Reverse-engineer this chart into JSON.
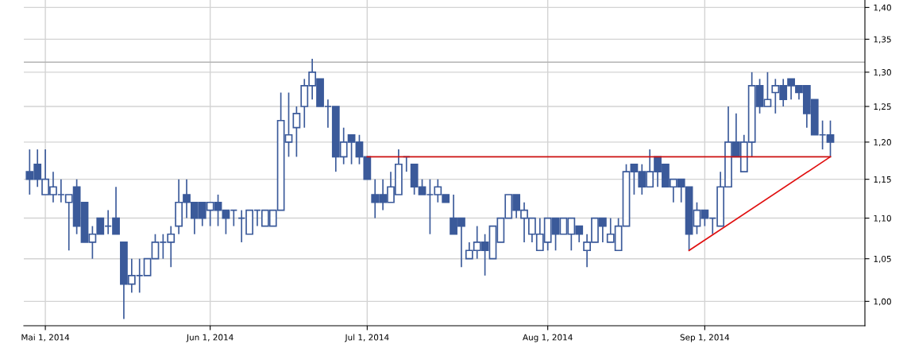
{
  "chart_data": {
    "type": "candlestick",
    "categories": [
      null,
      null,
      "Mai 1, 2014",
      null,
      null,
      null,
      null,
      null,
      null,
      null,
      null,
      null,
      null,
      null,
      null,
      null,
      null,
      null,
      null,
      null,
      null,
      null,
      null,
      "Jun 1, 2014",
      null,
      null,
      null,
      null,
      null,
      null,
      null,
      null,
      null,
      null,
      null,
      null,
      null,
      null,
      null,
      null,
      null,
      null,
      null,
      "Jul 1, 2014",
      null,
      null,
      null,
      null,
      null,
      null,
      null,
      null,
      null,
      null,
      null,
      null,
      null,
      null,
      null,
      null,
      null,
      null,
      null,
      null,
      null,
      null,
      "Aug 1, 2014",
      null,
      null,
      null,
      null,
      null,
      null,
      null,
      null,
      null,
      null,
      null,
      null,
      null,
      null,
      null,
      null,
      null,
      null,
      null,
      "Sep 1, 2014",
      null,
      null,
      null,
      null,
      null,
      null,
      null,
      null,
      null,
      null,
      null,
      null,
      null,
      null,
      null,
      null
    ],
    "series": [
      {
        "color": "#3b5a9a",
        "ohlc": [
          [
            1.16,
            1.19,
            1.13,
            1.15
          ],
          [
            1.17,
            1.19,
            1.14,
            1.15
          ],
          [
            1.13,
            1.19,
            1.13,
            1.15
          ],
          [
            1.13,
            1.16,
            1.12,
            1.14
          ],
          [
            1.13,
            1.15,
            1.12,
            1.13
          ],
          [
            1.12,
            1.13,
            1.06,
            1.13
          ],
          [
            1.14,
            1.15,
            1.08,
            1.09
          ],
          [
            1.12,
            1.12,
            1.07,
            1.07
          ],
          [
            1.07,
            1.09,
            1.05,
            1.08
          ],
          [
            1.1,
            1.1,
            1.08,
            1.08
          ],
          [
            1.09,
            1.11,
            1.08,
            1.09
          ],
          [
            1.1,
            1.14,
            1.08,
            1.08
          ],
          [
            1.07,
            1.07,
            0.98,
            1.02
          ],
          [
            1.02,
            1.05,
            1.01,
            1.03
          ],
          [
            1.03,
            1.05,
            1.01,
            1.03
          ],
          [
            1.03,
            1.05,
            1.03,
            1.05
          ],
          [
            1.05,
            1.08,
            1.05,
            1.07
          ],
          [
            1.07,
            1.08,
            1.05,
            1.07
          ],
          [
            1.07,
            1.09,
            1.04,
            1.08
          ],
          [
            1.09,
            1.15,
            1.08,
            1.12
          ],
          [
            1.13,
            1.15,
            1.1,
            1.12
          ],
          [
            1.12,
            1.12,
            1.08,
            1.1
          ],
          [
            1.12,
            1.12,
            1.09,
            1.1
          ],
          [
            1.11,
            1.12,
            1.09,
            1.12
          ],
          [
            1.12,
            1.13,
            1.09,
            1.11
          ],
          [
            1.11,
            1.11,
            1.08,
            1.1
          ],
          [
            1.11,
            1.11,
            1.09,
            1.11
          ],
          [
            1.1,
            1.11,
            1.07,
            1.1
          ],
          [
            1.08,
            1.11,
            1.08,
            1.11
          ],
          [
            1.11,
            1.11,
            1.09,
            1.11
          ],
          [
            1.09,
            1.11,
            1.09,
            1.11
          ],
          [
            1.09,
            1.11,
            1.09,
            1.11
          ],
          [
            1.11,
            1.27,
            1.11,
            1.23
          ],
          [
            1.2,
            1.27,
            1.18,
            1.21
          ],
          [
            1.22,
            1.25,
            1.18,
            1.24
          ],
          [
            1.25,
            1.29,
            1.22,
            1.28
          ],
          [
            1.28,
            1.32,
            1.26,
            1.3
          ],
          [
            1.29,
            1.29,
            1.25,
            1.25
          ],
          [
            1.25,
            1.26,
            1.22,
            1.25
          ],
          [
            1.25,
            1.25,
            1.16,
            1.18
          ],
          [
            1.18,
            1.22,
            1.17,
            1.2
          ],
          [
            1.21,
            1.21,
            1.17,
            1.2
          ],
          [
            1.2,
            1.21,
            1.17,
            1.18
          ],
          [
            1.18,
            1.18,
            1.15,
            1.15
          ],
          [
            1.13,
            1.15,
            1.1,
            1.12
          ],
          [
            1.13,
            1.15,
            1.11,
            1.12
          ],
          [
            1.12,
            1.16,
            1.12,
            1.14
          ],
          [
            1.13,
            1.19,
            1.13,
            1.17
          ],
          [
            1.18,
            1.18,
            1.16,
            1.18
          ],
          [
            1.17,
            1.17,
            1.13,
            1.14
          ],
          [
            1.14,
            1.15,
            1.13,
            1.13
          ],
          [
            1.13,
            1.15,
            1.08,
            1.13
          ],
          [
            1.13,
            1.15,
            1.12,
            1.14
          ],
          [
            1.13,
            1.13,
            1.12,
            1.12
          ],
          [
            1.1,
            1.13,
            1.08,
            1.08
          ],
          [
            1.1,
            1.1,
            1.04,
            1.09
          ],
          [
            1.05,
            1.07,
            1.05,
            1.06
          ],
          [
            1.06,
            1.09,
            1.05,
            1.07
          ],
          [
            1.07,
            1.08,
            1.03,
            1.06
          ],
          [
            1.05,
            1.09,
            1.05,
            1.09
          ],
          [
            1.07,
            1.1,
            1.07,
            1.1
          ],
          [
            1.1,
            1.13,
            1.1,
            1.13
          ],
          [
            1.13,
            1.13,
            1.1,
            1.11
          ],
          [
            1.1,
            1.12,
            1.07,
            1.11
          ],
          [
            1.08,
            1.1,
            1.07,
            1.1
          ],
          [
            1.06,
            1.1,
            1.06,
            1.08
          ],
          [
            1.07,
            1.1,
            1.06,
            1.1
          ],
          [
            1.1,
            1.1,
            1.06,
            1.08
          ],
          [
            1.08,
            1.1,
            1.08,
            1.1
          ],
          [
            1.08,
            1.1,
            1.06,
            1.1
          ],
          [
            1.09,
            1.09,
            1.07,
            1.08
          ],
          [
            1.06,
            1.08,
            1.04,
            1.07
          ],
          [
            1.07,
            1.1,
            1.07,
            1.1
          ],
          [
            1.1,
            1.1,
            1.07,
            1.09
          ],
          [
            1.07,
            1.1,
            1.07,
            1.08
          ],
          [
            1.06,
            1.1,
            1.06,
            1.09
          ],
          [
            1.09,
            1.17,
            1.09,
            1.16
          ],
          [
            1.17,
            1.17,
            1.13,
            1.16
          ],
          [
            1.16,
            1.17,
            1.13,
            1.14
          ],
          [
            1.14,
            1.19,
            1.14,
            1.16
          ],
          [
            1.18,
            1.18,
            1.14,
            1.16
          ],
          [
            1.17,
            1.17,
            1.14,
            1.14
          ],
          [
            1.14,
            1.15,
            1.12,
            1.15
          ],
          [
            1.15,
            1.15,
            1.12,
            1.14
          ],
          [
            1.14,
            1.14,
            1.06,
            1.08
          ],
          [
            1.09,
            1.12,
            1.08,
            1.11
          ],
          [
            1.11,
            1.11,
            1.09,
            1.1
          ],
          [
            1.1,
            1.1,
            1.08,
            1.1
          ],
          [
            1.09,
            1.16,
            1.09,
            1.14
          ],
          [
            1.14,
            1.25,
            1.14,
            1.2
          ],
          [
            1.2,
            1.24,
            1.18,
            1.18
          ],
          [
            1.16,
            1.21,
            1.16,
            1.2
          ],
          [
            1.2,
            1.3,
            1.18,
            1.28
          ],
          [
            1.28,
            1.29,
            1.24,
            1.25
          ],
          [
            1.25,
            1.3,
            1.25,
            1.26
          ],
          [
            1.27,
            1.29,
            1.24,
            1.28
          ],
          [
            1.28,
            1.29,
            1.25,
            1.26
          ],
          [
            1.29,
            1.29,
            1.26,
            1.28
          ],
          [
            1.28,
            1.28,
            1.26,
            1.27
          ],
          [
            1.28,
            1.28,
            1.22,
            1.24
          ],
          [
            1.26,
            1.26,
            1.21,
            1.21
          ],
          [
            1.21,
            1.23,
            1.19,
            1.21
          ],
          [
            1.21,
            1.23,
            1.18,
            1.2
          ]
        ]
      },
      {
        "type": "line",
        "color": "#e01010",
        "values": [
          null,
          null,
          null,
          null,
          null,
          null,
          null,
          null,
          null,
          null,
          null,
          null,
          null,
          null,
          null,
          null,
          null,
          null,
          null,
          null,
          null,
          null,
          null,
          null,
          null,
          null,
          null,
          null,
          null,
          null,
          null,
          null,
          null,
          null,
          null,
          null,
          null,
          null,
          null,
          null,
          null,
          null,
          null,
          null,
          null,
          null,
          null,
          null,
          null,
          null,
          null,
          null,
          null,
          null,
          null,
          null,
          null,
          null,
          null,
          null,
          null,
          null,
          null,
          null,
          null,
          null,
          null,
          null,
          null,
          null,
          null,
          null,
          null,
          null,
          null,
          null,
          null,
          null,
          null,
          null,
          null,
          null,
          null,
          null,
          1.06,
          null,
          null,
          null,
          null,
          null,
          null,
          null,
          null,
          null,
          null,
          null,
          null,
          null,
          null,
          null,
          null,
          null,
          1.18
        ]
      },
      {
        "type": "line",
        "color": "#cc1010",
        "values": [
          null,
          null,
          null,
          null,
          null,
          null,
          null,
          null,
          null,
          null,
          null,
          null,
          null,
          null,
          null,
          null,
          null,
          null,
          null,
          null,
          null,
          null,
          null,
          null,
          null,
          null,
          null,
          null,
          null,
          null,
          null,
          null,
          null,
          null,
          null,
          null,
          null,
          null,
          null,
          null,
          null,
          null,
          null,
          1.18,
          null,
          null,
          null,
          null,
          null,
          null,
          null,
          null,
          null,
          null,
          null,
          null,
          null,
          null,
          null,
          null,
          null,
          null,
          null,
          null,
          null,
          null,
          null,
          null,
          null,
          null,
          null,
          null,
          null,
          null,
          null,
          null,
          null,
          null,
          null,
          null,
          null,
          null,
          null,
          null,
          null,
          null,
          null,
          null,
          null,
          null,
          null,
          null,
          null,
          null,
          null,
          null,
          null,
          null,
          null,
          null,
          null,
          null,
          1.18
        ]
      }
    ],
    "ref_lines": [
      {
        "axis": "y",
        "value": 1.315,
        "color": "#b4b4b4"
      }
    ],
    "log": "y",
    "ylim": [
      0.9725,
      1.412
    ],
    "yticks": [
      {
        "value": 1.0,
        "label": "1,00"
      },
      {
        "value": 1.05,
        "label": "1,05"
      },
      {
        "value": 1.1,
        "label": "1,10"
      },
      {
        "value": 1.15,
        "label": "1,15"
      },
      {
        "value": 1.2,
        "label": "1,20"
      },
      {
        "value": 1.25,
        "label": "1,25"
      },
      {
        "value": 1.3,
        "label": "1,30"
      },
      {
        "value": 1.35,
        "label": "1,35"
      },
      {
        "value": 1.4,
        "label": "1,40"
      }
    ],
    "grid": true,
    "legend": false
  }
}
